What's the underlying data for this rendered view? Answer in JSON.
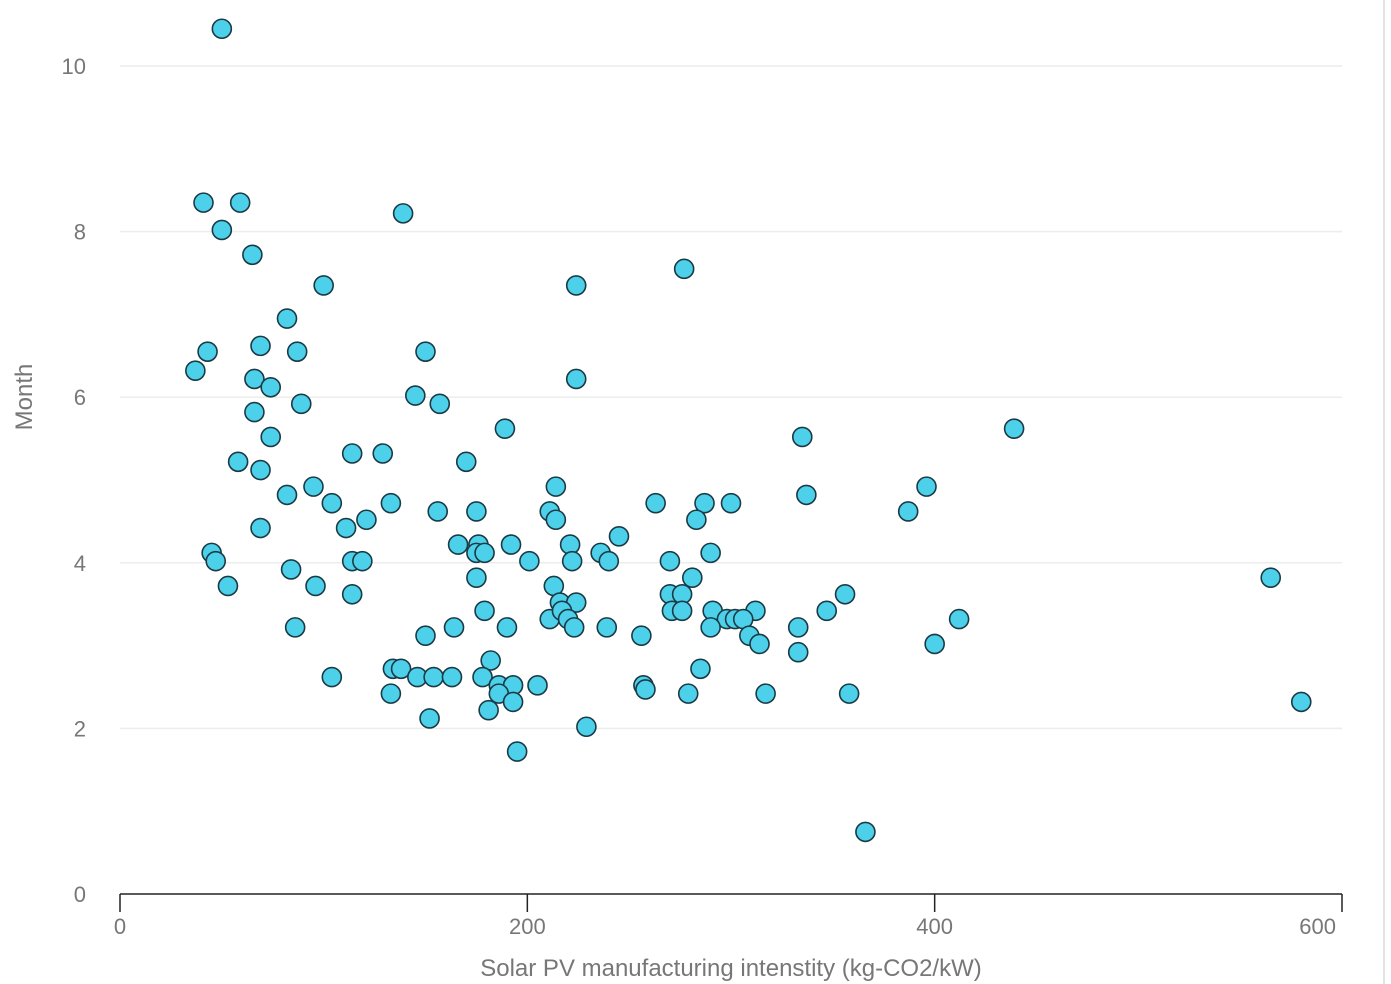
{
  "chart_data": {
    "type": "scatter",
    "xlabel": "Solar PV manufacturing intenstity (kg-CO2/kW)",
    "ylabel": "Month",
    "xlim": [
      0,
      600
    ],
    "ylim": [
      0,
      10
    ],
    "x_ticks": [
      0,
      200,
      400,
      600
    ],
    "y_ticks": [
      0,
      2,
      4,
      6,
      8,
      10
    ],
    "grid": "horizontal",
    "marker_fill": "#4dd0ea",
    "marker_edge": "#1a3a44",
    "points": [
      [
        50,
        10.45
      ],
      [
        41,
        8.35
      ],
      [
        59,
        8.35
      ],
      [
        50,
        8.02
      ],
      [
        65,
        7.72
      ],
      [
        139,
        8.22
      ],
      [
        100,
        7.35
      ],
      [
        224,
        7.35
      ],
      [
        277,
        7.55
      ],
      [
        82,
        6.95
      ],
      [
        69,
        6.62
      ],
      [
        43,
        6.55
      ],
      [
        87,
        6.55
      ],
      [
        37,
        6.32
      ],
      [
        66,
        6.22
      ],
      [
        74,
        6.12
      ],
      [
        150,
        6.55
      ],
      [
        224,
        6.22
      ],
      [
        145,
        6.02
      ],
      [
        157,
        5.92
      ],
      [
        89,
        5.92
      ],
      [
        66,
        5.82
      ],
      [
        189,
        5.62
      ],
      [
        335,
        5.52
      ],
      [
        439,
        5.62
      ],
      [
        74,
        5.52
      ],
      [
        58,
        5.22
      ],
      [
        69,
        5.12
      ],
      [
        114,
        5.32
      ],
      [
        129,
        5.32
      ],
      [
        170,
        5.22
      ],
      [
        82,
        4.82
      ],
      [
        95,
        4.92
      ],
      [
        104,
        4.72
      ],
      [
        133,
        4.72
      ],
      [
        214,
        4.92
      ],
      [
        263,
        4.72
      ],
      [
        287,
        4.72
      ],
      [
        300,
        4.72
      ],
      [
        337,
        4.82
      ],
      [
        396,
        4.92
      ],
      [
        387,
        4.62
      ],
      [
        69,
        4.42
      ],
      [
        111,
        4.42
      ],
      [
        121,
        4.52
      ],
      [
        156,
        4.62
      ],
      [
        175,
        4.62
      ],
      [
        211,
        4.62
      ],
      [
        214,
        4.52
      ],
      [
        283,
        4.52
      ],
      [
        45,
        4.12
      ],
      [
        47,
        4.02
      ],
      [
        166,
        4.22
      ],
      [
        176,
        4.22
      ],
      [
        175,
        4.12
      ],
      [
        179,
        4.12
      ],
      [
        192,
        4.22
      ],
      [
        221,
        4.22
      ],
      [
        236,
        4.12
      ],
      [
        245,
        4.32
      ],
      [
        114,
        4.02
      ],
      [
        119,
        4.02
      ],
      [
        201,
        4.02
      ],
      [
        222,
        4.02
      ],
      [
        240,
        4.02
      ],
      [
        270,
        4.02
      ],
      [
        290,
        4.12
      ],
      [
        84,
        3.92
      ],
      [
        175,
        3.82
      ],
      [
        281,
        3.82
      ],
      [
        53,
        3.72
      ],
      [
        96,
        3.72
      ],
      [
        114,
        3.62
      ],
      [
        213,
        3.72
      ],
      [
        270,
        3.62
      ],
      [
        276,
        3.62
      ],
      [
        356,
        3.62
      ],
      [
        565,
        3.82
      ],
      [
        179,
        3.42
      ],
      [
        216,
        3.52
      ],
      [
        224,
        3.52
      ],
      [
        271,
        3.42
      ],
      [
        276,
        3.42
      ],
      [
        291,
        3.42
      ],
      [
        312,
        3.42
      ],
      [
        347,
        3.42
      ],
      [
        211,
        3.32
      ],
      [
        217,
        3.42
      ],
      [
        220,
        3.32
      ],
      [
        298,
        3.32
      ],
      [
        302,
        3.32
      ],
      [
        306,
        3.32
      ],
      [
        412,
        3.32
      ],
      [
        86,
        3.22
      ],
      [
        164,
        3.22
      ],
      [
        190,
        3.22
      ],
      [
        223,
        3.22
      ],
      [
        239,
        3.22
      ],
      [
        290,
        3.22
      ],
      [
        333,
        3.22
      ],
      [
        150,
        3.12
      ],
      [
        256,
        3.12
      ],
      [
        309,
        3.12
      ],
      [
        314,
        3.02
      ],
      [
        400,
        3.02
      ],
      [
        333,
        2.92
      ],
      [
        134,
        2.72
      ],
      [
        138,
        2.72
      ],
      [
        182,
        2.82
      ],
      [
        285,
        2.72
      ],
      [
        104,
        2.62
      ],
      [
        146,
        2.62
      ],
      [
        154,
        2.62
      ],
      [
        163,
        2.62
      ],
      [
        178,
        2.62
      ],
      [
        186,
        2.52
      ],
      [
        193,
        2.52
      ],
      [
        205,
        2.52
      ],
      [
        257,
        2.52
      ],
      [
        258,
        2.47
      ],
      [
        133,
        2.42
      ],
      [
        186,
        2.42
      ],
      [
        193,
        2.32
      ],
      [
        279,
        2.42
      ],
      [
        317,
        2.42
      ],
      [
        358,
        2.42
      ],
      [
        580,
        2.32
      ],
      [
        152,
        2.12
      ],
      [
        181,
        2.22
      ],
      [
        229,
        2.02
      ],
      [
        195,
        1.72
      ],
      [
        366,
        0.75
      ]
    ]
  }
}
